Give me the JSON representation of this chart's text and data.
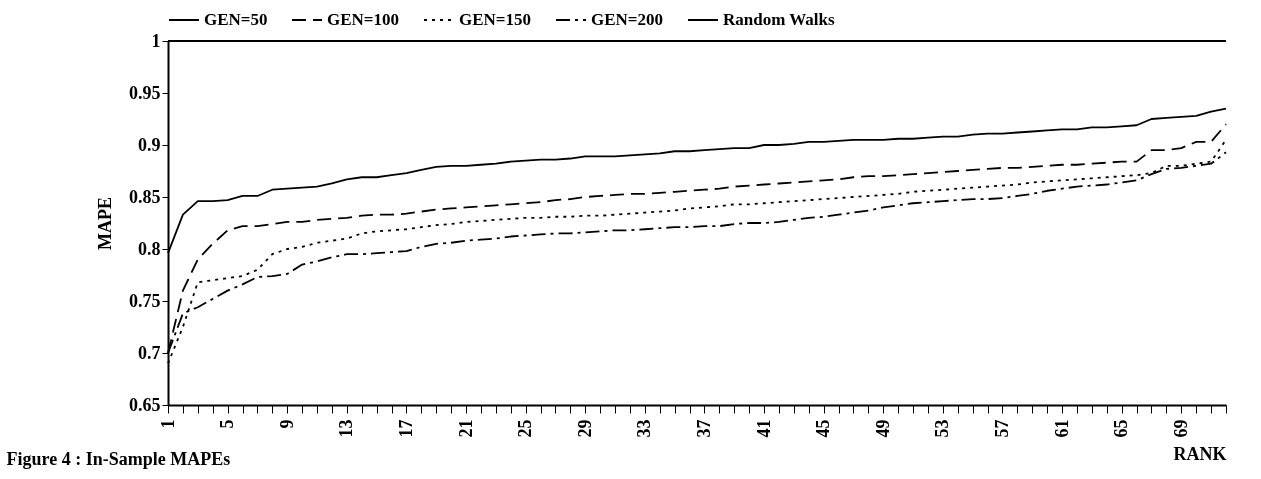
{
  "chart_data": {
    "type": "line",
    "xlabel": "RANK",
    "ylabel": "MAPE",
    "annotations": [
      "Figure 4 :  In-Sample MAPEs"
    ],
    "categories": [
      "1",
      null,
      null,
      null,
      "5",
      null,
      null,
      null,
      "9",
      null,
      null,
      null,
      "13",
      null,
      null,
      null,
      "17",
      null,
      null,
      null,
      "21",
      null,
      null,
      null,
      "25",
      null,
      null,
      null,
      "29",
      null,
      null,
      null,
      "33",
      null,
      null,
      null,
      "37",
      null,
      null,
      null,
      "41",
      null,
      null,
      null,
      "45",
      null,
      null,
      null,
      "49",
      null,
      null,
      null,
      "53",
      null,
      null,
      null,
      "57",
      null,
      null,
      null,
      "61",
      null,
      null,
      null,
      "65",
      null,
      null,
      null,
      "69",
      null,
      null,
      null
    ],
    "ylim": [
      0.65,
      1
    ],
    "yticks": [
      0.65,
      0.7,
      0.75,
      0.8,
      0.85,
      0.9,
      0.95,
      1
    ],
    "grid": false,
    "legend": "top",
    "marker": "none",
    "series": [
      {
        "name": "GEN=50",
        "color": "#000000",
        "line_style": "solid",
        "values": [
          0.796,
          0.833,
          0.846,
          0.846,
          0.847,
          0.851,
          0.851,
          0.857,
          0.858,
          0.859,
          0.86,
          0.863,
          0.867,
          0.869,
          0.869,
          0.871,
          0.873,
          0.876,
          0.879,
          0.88,
          0.88,
          0.881,
          0.882,
          0.884,
          0.885,
          0.886,
          0.886,
          0.887,
          0.889,
          0.889,
          0.889,
          0.89,
          0.891,
          0.892,
          0.894,
          0.894,
          0.895,
          0.896,
          0.897,
          0.897,
          0.9,
          0.9,
          0.901,
          0.903,
          0.903,
          0.904,
          0.905,
          0.905,
          0.905,
          0.906,
          0.906,
          0.907,
          0.908,
          0.908,
          0.91,
          0.911,
          0.911,
          0.912,
          0.913,
          0.914,
          0.915,
          0.915,
          0.917,
          0.917,
          0.918,
          0.919,
          0.925,
          0.926,
          0.927,
          0.928,
          0.932,
          0.935
        ]
      },
      {
        "name": "GEN=100",
        "color": "#000000",
        "line_style": "dashed",
        "values": [
          0.7,
          0.76,
          0.79,
          0.805,
          0.818,
          0.822,
          0.822,
          0.824,
          0.826,
          0.826,
          0.828,
          0.829,
          0.83,
          0.832,
          0.833,
          0.833,
          0.834,
          0.836,
          0.838,
          0.839,
          0.84,
          0.841,
          0.842,
          0.843,
          0.844,
          0.845,
          0.847,
          0.848,
          0.85,
          0.851,
          0.852,
          0.853,
          0.853,
          0.854,
          0.855,
          0.856,
          0.857,
          0.858,
          0.86,
          0.861,
          0.862,
          0.863,
          0.864,
          0.865,
          0.866,
          0.867,
          0.869,
          0.87,
          0.87,
          0.871,
          0.872,
          0.873,
          0.874,
          0.875,
          0.876,
          0.877,
          0.878,
          0.878,
          0.879,
          0.88,
          0.881,
          0.881,
          0.882,
          0.883,
          0.884,
          0.884,
          0.895,
          0.895,
          0.897,
          0.903,
          0.903,
          0.92
        ]
      },
      {
        "name": "GEN=150",
        "color": "#000000",
        "line_style": "dotted",
        "values": [
          0.69,
          0.725,
          0.768,
          0.77,
          0.772,
          0.774,
          0.78,
          0.795,
          0.8,
          0.802,
          0.806,
          0.808,
          0.81,
          0.815,
          0.817,
          0.818,
          0.819,
          0.821,
          0.823,
          0.824,
          0.826,
          0.827,
          0.828,
          0.829,
          0.83,
          0.83,
          0.831,
          0.831,
          0.832,
          0.832,
          0.833,
          0.834,
          0.835,
          0.836,
          0.837,
          0.839,
          0.84,
          0.841,
          0.843,
          0.843,
          0.844,
          0.845,
          0.846,
          0.847,
          0.848,
          0.849,
          0.85,
          0.851,
          0.852,
          0.853,
          0.855,
          0.856,
          0.857,
          0.858,
          0.859,
          0.86,
          0.861,
          0.862,
          0.864,
          0.865,
          0.866,
          0.867,
          0.868,
          0.869,
          0.87,
          0.871,
          0.873,
          0.88,
          0.88,
          0.882,
          0.884,
          0.905
        ]
      },
      {
        "name": "GEN=200",
        "color": "#000000",
        "line_style": "dashdot",
        "values": [
          0.7,
          0.738,
          0.744,
          0.752,
          0.76,
          0.766,
          0.773,
          0.774,
          0.776,
          0.785,
          0.788,
          0.792,
          0.795,
          0.795,
          0.796,
          0.797,
          0.798,
          0.802,
          0.805,
          0.806,
          0.808,
          0.809,
          0.81,
          0.812,
          0.813,
          0.814,
          0.815,
          0.815,
          0.816,
          0.817,
          0.818,
          0.818,
          0.819,
          0.82,
          0.821,
          0.821,
          0.822,
          0.822,
          0.824,
          0.825,
          0.825,
          0.826,
          0.828,
          0.83,
          0.831,
          0.833,
          0.835,
          0.837,
          0.84,
          0.842,
          0.844,
          0.845,
          0.846,
          0.847,
          0.848,
          0.848,
          0.849,
          0.851,
          0.853,
          0.856,
          0.858,
          0.86,
          0.861,
          0.862,
          0.864,
          0.866,
          0.872,
          0.877,
          0.878,
          0.88,
          0.882,
          0.893
        ]
      },
      {
        "name": "Random Walks",
        "color": "#000000",
        "line_style": "solid",
        "values": [
          1,
          1,
          1,
          1,
          1,
          1,
          1,
          1,
          1,
          1,
          1,
          1,
          1,
          1,
          1,
          1,
          1,
          1,
          1,
          1,
          1,
          1,
          1,
          1,
          1,
          1,
          1,
          1,
          1,
          1,
          1,
          1,
          1,
          1,
          1,
          1,
          1,
          1,
          1,
          1,
          1,
          1,
          1,
          1,
          1,
          1,
          1,
          1,
          1,
          1,
          1,
          1,
          1,
          1,
          1,
          1,
          1,
          1,
          1,
          1,
          1,
          1,
          1,
          1,
          1,
          1,
          1,
          1,
          1,
          1,
          1,
          1
        ]
      }
    ]
  }
}
